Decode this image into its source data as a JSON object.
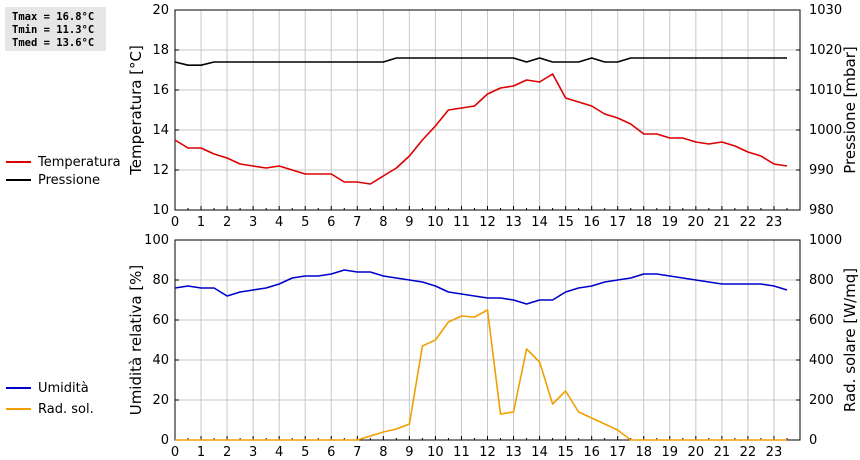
{
  "stats": {
    "tmax": "Tmax = 16.8°C",
    "tmin": "Tmin = 11.3°C",
    "tmed": "Tmed = 13.6°C"
  },
  "chart_data": [
    {
      "type": "line",
      "x": [
        0,
        0.5,
        1,
        1.5,
        2,
        2.5,
        3,
        3.5,
        4,
        4.5,
        5,
        5.5,
        6,
        6.5,
        7,
        7.5,
        8,
        8.5,
        9,
        9.5,
        10,
        10.5,
        11,
        11.5,
        12,
        12.5,
        13,
        13.5,
        14,
        14.5,
        15,
        15.5,
        16,
        16.5,
        17,
        17.5,
        18,
        18.5,
        19,
        19.5,
        20,
        20.5,
        21,
        21.5,
        22,
        22.5,
        23,
        23.5
      ],
      "xlim": [
        0,
        24
      ],
      "xticks": [
        "0",
        "1",
        "2",
        "3",
        "4",
        "5",
        "6",
        "7",
        "8",
        "9",
        "10",
        "11",
        "12",
        "13",
        "14",
        "15",
        "16",
        "17",
        "18",
        "19",
        "20",
        "21",
        "22",
        "23"
      ],
      "ylabel": "Temperatura [°C]",
      "y2label": "Pressione [mbar]",
      "ylim": [
        10,
        20
      ],
      "y2lim": [
        980,
        1030
      ],
      "yticks": [
        "10",
        "12",
        "14",
        "16",
        "18",
        "20"
      ],
      "y2ticks": [
        "980",
        "990",
        "1000",
        "1010",
        "1020",
        "1030"
      ],
      "grid": true,
      "series": [
        {
          "name": "Temperatura",
          "axis": "left",
          "color": "#dd0000",
          "values": [
            13.5,
            13.1,
            13.1,
            12.8,
            12.6,
            12.3,
            12.2,
            12.1,
            12.2,
            12.0,
            11.8,
            11.8,
            11.8,
            11.4,
            11.4,
            11.3,
            11.7,
            12.1,
            12.7,
            13.5,
            14.2,
            15.0,
            15.1,
            15.2,
            15.8,
            16.1,
            16.2,
            16.5,
            16.4,
            16.8,
            15.6,
            15.4,
            15.2,
            14.8,
            14.6,
            14.3,
            13.8,
            13.8,
            13.6,
            13.6,
            13.4,
            13.3,
            13.4,
            13.2,
            12.9,
            12.7,
            12.3,
            12.2
          ]
        },
        {
          "name": "Pressione",
          "axis": "right",
          "color": "#000000",
          "values": [
            1017,
            1016.2,
            1016.2,
            1017,
            1017,
            1017,
            1017,
            1017,
            1017,
            1017,
            1017,
            1017,
            1017,
            1017,
            1017,
            1017,
            1017,
            1018,
            1018,
            1018,
            1018,
            1018,
            1018,
            1018,
            1018,
            1018,
            1018,
            1017,
            1018,
            1017,
            1017,
            1017,
            1018,
            1017,
            1017,
            1018,
            1018,
            1018,
            1018,
            1018,
            1018,
            1018,
            1018,
            1018,
            1018,
            1018,
            1018,
            1018
          ]
        }
      ]
    },
    {
      "type": "line",
      "x": [
        0,
        0.5,
        1,
        1.5,
        2,
        2.5,
        3,
        3.5,
        4,
        4.5,
        5,
        5.5,
        6,
        6.5,
        7,
        7.5,
        8,
        8.5,
        9,
        9.5,
        10,
        10.5,
        11,
        11.5,
        12,
        12.5,
        13,
        13.5,
        14,
        14.5,
        15,
        15.5,
        16,
        16.5,
        17,
        17.5,
        18,
        18.5,
        19,
        19.5,
        20,
        20.5,
        21,
        21.5,
        22,
        22.5,
        23,
        23.5
      ],
      "xlim": [
        0,
        24
      ],
      "xticks": [
        "0",
        "1",
        "2",
        "3",
        "4",
        "5",
        "6",
        "7",
        "8",
        "9",
        "10",
        "11",
        "12",
        "13",
        "14",
        "15",
        "16",
        "17",
        "18",
        "19",
        "20",
        "21",
        "22",
        "23"
      ],
      "ylabel": "Umidità relativa [%]",
      "y2label": "Rad. solare [W/mq]",
      "ylim": [
        0,
        100
      ],
      "y2lim": [
        0,
        1000
      ],
      "yticks": [
        "0",
        "20",
        "40",
        "60",
        "80",
        "100"
      ],
      "y2ticks": [
        "0",
        "200",
        "400",
        "600",
        "800",
        "1000"
      ],
      "grid": true,
      "series": [
        {
          "name": "Umidità",
          "axis": "left",
          "color": "#0000cc",
          "values": [
            76,
            77,
            76,
            76,
            72,
            74,
            75,
            76,
            78,
            81,
            82,
            82,
            83,
            85,
            84,
            84,
            82,
            81,
            80,
            79,
            77,
            74,
            73,
            72,
            71,
            71,
            70,
            68,
            70,
            70,
            74,
            76,
            77,
            79,
            80,
            81,
            83,
            83,
            82,
            81,
            80,
            79,
            78,
            78,
            78,
            78,
            77,
            75
          ]
        },
        {
          "name": "Rad. sol.",
          "axis": "right",
          "color": "#f0a000",
          "values": [
            0,
            0,
            0,
            0,
            0,
            0,
            0,
            0,
            0,
            0,
            0,
            0,
            0,
            0,
            0,
            20,
            40,
            55,
            80,
            470,
            500,
            590,
            620,
            615,
            650,
            130,
            140,
            455,
            390,
            180,
            245,
            140,
            110,
            80,
            50,
            0,
            0,
            0,
            0,
            0,
            0,
            0,
            0,
            0,
            0,
            0,
            0,
            0
          ]
        }
      ]
    }
  ]
}
